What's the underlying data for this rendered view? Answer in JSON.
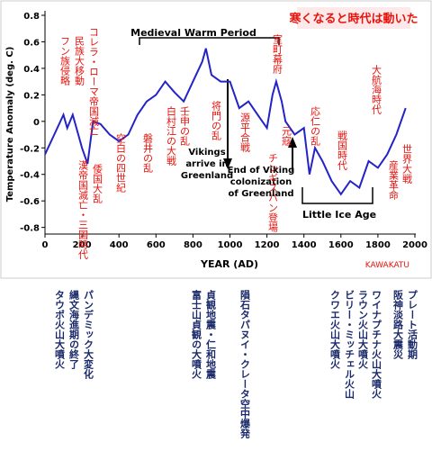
{
  "chart_data": {
    "type": "line",
    "title": "寒くなると時代は動いた",
    "x_label": "YEAR (AD)",
    "y_label": "Temperature Anomaly (deg. C)",
    "credit": "KAWAKATU",
    "x": [
      0,
      50,
      100,
      120,
      150,
      180,
      200,
      230,
      260,
      300,
      350,
      400,
      450,
      500,
      550,
      600,
      650,
      700,
      750,
      800,
      850,
      870,
      900,
      950,
      1000,
      1050,
      1100,
      1150,
      1200,
      1230,
      1250,
      1280,
      1300,
      1350,
      1400,
      1430,
      1460,
      1500,
      1550,
      1600,
      1650,
      1700,
      1750,
      1800,
      1850,
      1900,
      1950
    ],
    "values": [
      -0.25,
      -0.1,
      0.05,
      -0.05,
      0.05,
      -0.1,
      -0.2,
      -0.32,
      0.0,
      -0.02,
      -0.1,
      -0.15,
      -0.1,
      0.05,
      0.15,
      0.2,
      0.3,
      0.22,
      0.15,
      0.3,
      0.45,
      0.55,
      0.35,
      0.3,
      0.3,
      0.1,
      0.15,
      0.05,
      -0.05,
      0.2,
      0.3,
      0.15,
      0.0,
      -0.1,
      -0.05,
      -0.4,
      -0.2,
      -0.3,
      -0.45,
      -0.55,
      -0.45,
      -0.5,
      -0.3,
      -0.35,
      -0.25,
      -0.1,
      0.1
    ],
    "color": "#2323c8",
    "xlim": [
      0,
      2000
    ],
    "xticks": [
      0,
      200,
      400,
      600,
      800,
      1000,
      1200,
      1400,
      1600,
      1800,
      2000
    ],
    "ylim": [
      -0.85,
      0.8
    ],
    "yticks": [
      -0.8,
      -0.6,
      -0.4,
      -0.2,
      0,
      0.2,
      0.4,
      0.6,
      0.8
    ],
    "annotations": [
      "Medieval Warm Period",
      "Vikings arrive in Greenland",
      "End of Viking colonization of Greenland",
      "Little Ice Age",
      "フン族侵略",
      "民族大移動",
      "コレラ・ローマ帝国滅亡",
      "漢帝国滅亡・三国時代",
      "倭国大乱",
      "空白の四世紀",
      "磐井の乱",
      "白村江の大戦",
      "壬申の乱",
      "将門の乱",
      "源平合戦",
      "室町幕府",
      "元寇",
      "チンギスハン登場",
      "応仁の乱",
      "戦国時代",
      "大航海時代",
      "産業革命",
      "世界大戦"
    ]
  },
  "notes": [
    "タウポ火山大噴火",
    "縄文海進期の終了",
    "パンデミック大変化",
    "富士山貞観の大噴火",
    "貞観地震・仁和地震",
    "隕石タパヌイ・クレータ空中爆発",
    "クワエ火山大噴火",
    "ビリー・ミッチェル火山",
    "ラウン火山大噴火",
    "ワイナプチナ火山大噴火",
    "阪神淡路大震災",
    "プレート活動期"
  ]
}
